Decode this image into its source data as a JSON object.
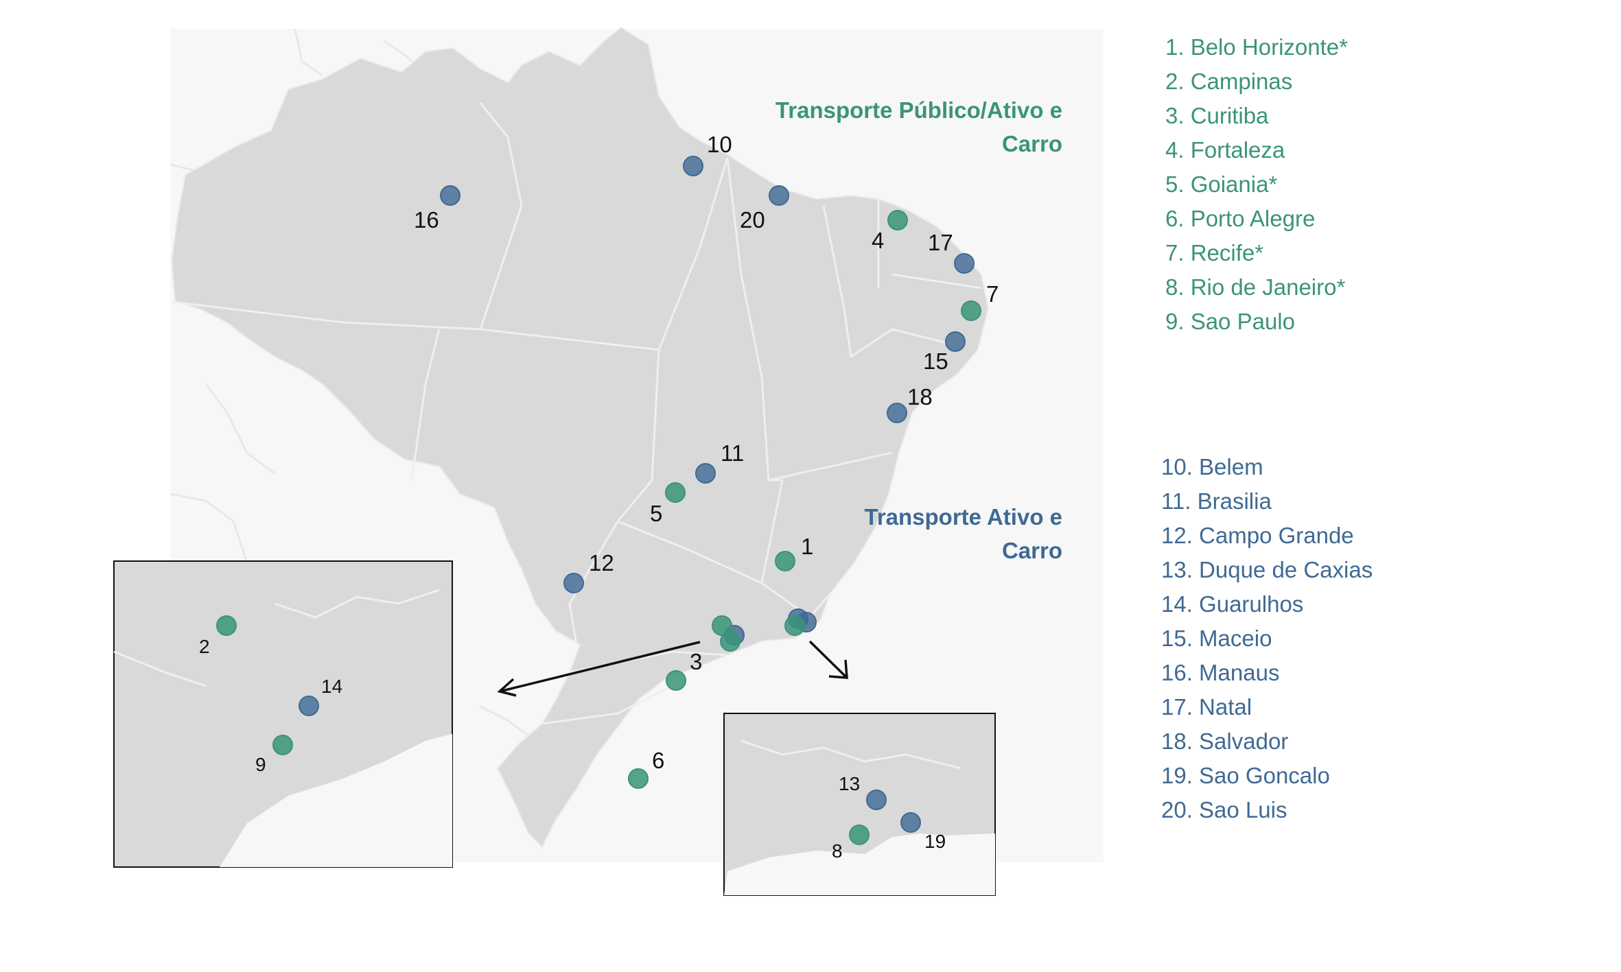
{
  "colors": {
    "green": "#3a9478",
    "blue": "#3f6994",
    "land": "#d9d9d9",
    "border": "#efefef",
    "sea": "#f7f7f7"
  },
  "groups": {
    "green_title_line1": "Transporte Público/Ativo e",
    "green_title_line2": "Carro",
    "blue_title_line1": "Transporte Ativo e",
    "blue_title_line2": "Carro"
  },
  "legend": {
    "green": [
      "1. Belo Horizonte*",
      "2. Campinas",
      "3. Curitiba",
      "4. Fortaleza",
      "5. Goiania*",
      "6. Porto Alegre",
      "7. Recife*",
      "8. Rio de Janeiro*",
      "9. Sao Paulo"
    ],
    "blue": [
      "10. Belem",
      "11. Brasilia",
      "12. Campo Grande",
      "13. Duque de Caxias",
      "14. Guarulhos",
      "15. Maceio",
      "16. Manaus",
      "17. Natal",
      "18. Salvador",
      "19. Sao Goncalo",
      "20. Sao Luis"
    ]
  },
  "cities": [
    {
      "id": "1",
      "group": "green"
    },
    {
      "id": "2",
      "group": "green"
    },
    {
      "id": "3",
      "group": "green"
    },
    {
      "id": "4",
      "group": "green"
    },
    {
      "id": "5",
      "group": "green"
    },
    {
      "id": "6",
      "group": "green"
    },
    {
      "id": "7",
      "group": "green"
    },
    {
      "id": "8",
      "group": "green"
    },
    {
      "id": "9",
      "group": "green"
    },
    {
      "id": "10",
      "group": "blue"
    },
    {
      "id": "11",
      "group": "blue"
    },
    {
      "id": "12",
      "group": "blue"
    },
    {
      "id": "13",
      "group": "blue"
    },
    {
      "id": "14",
      "group": "blue"
    },
    {
      "id": "15",
      "group": "blue"
    },
    {
      "id": "16",
      "group": "blue"
    },
    {
      "id": "17",
      "group": "blue"
    },
    {
      "id": "18",
      "group": "blue"
    },
    {
      "id": "19",
      "group": "blue"
    },
    {
      "id": "20",
      "group": "blue"
    }
  ]
}
